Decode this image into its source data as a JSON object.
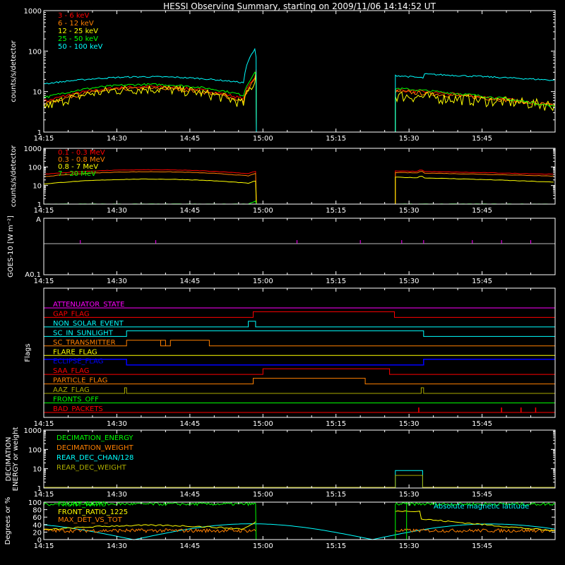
{
  "title": "HESSI Observing Summary, starting on 2009/11/06 14:14:52 UT",
  "x_tick_labels": [
    "14:15",
    "14:30",
    "14:45",
    "15:00",
    "15:15",
    "15:30",
    "15:45"
  ],
  "colors": {
    "background": "#000000",
    "axes": "#ffffff",
    "red": "#ff0000",
    "orange": "#ff8000",
    "yellow": "#ffff00",
    "green": "#00ff00",
    "cyan": "#00ffff",
    "magenta": "#ff00ff",
    "blue": "#0000ff",
    "olive": "#aaaa00"
  },
  "chart_data": [
    {
      "id": "xray",
      "type": "line",
      "ylabel": "counts/s/detector",
      "yscale": "log",
      "ylim": [
        1,
        1000
      ],
      "y_tick_labels": [
        "1",
        "10",
        "100",
        "1000"
      ],
      "series": [
        {
          "name": "3 - 6 keV",
          "color": "#ff0000"
        },
        {
          "name": "6 - 12 keV",
          "color": "#ff8000"
        },
        {
          "name": "12 - 25 keV",
          "color": "#ffff00"
        },
        {
          "name": "25 - 50 keV",
          "color": "#00ff00"
        },
        {
          "name": "50 - 100 keV",
          "color": "#00ffff"
        }
      ]
    },
    {
      "id": "gamma",
      "type": "line",
      "ylabel": "counts/s/detector",
      "yscale": "log",
      "ylim": [
        1,
        1000
      ],
      "y_tick_labels": [
        "1",
        "10",
        "100",
        "1000"
      ],
      "series": [
        {
          "name": "0.1 - 0.3 MeV",
          "color": "#ff0000"
        },
        {
          "name": "0.3 - 0.8 MeV",
          "color": "#ff8000"
        },
        {
          "name": "0.8 - 7 MeV",
          "color": "#ffff00"
        },
        {
          "name": "7 - 20 MeV",
          "color": "#00ff00"
        }
      ]
    },
    {
      "id": "goes",
      "type": "line",
      "ylabel": "GOES-10 [W m⁻²]",
      "y_tick_labels": [
        "A",
        "A0.1"
      ]
    },
    {
      "id": "flags",
      "type": "line",
      "ylabel": "Flags",
      "series": [
        {
          "name": "ATTENUATOR_STATE",
          "color": "#ff00ff"
        },
        {
          "name": "GAP_FLAG",
          "color": "#ff0000"
        },
        {
          "name": "NON_SOLAR_EVENT",
          "color": "#00ffff"
        },
        {
          "name": "SC_IN_SUNLIGHT",
          "color": "#00ffff"
        },
        {
          "name": "SC_TRANSMITTER",
          "color": "#ff8000"
        },
        {
          "name": "FLARE_FLAG",
          "color": "#ffff00"
        },
        {
          "name": "ECLIPSE_FLAG",
          "color": "#0000ff"
        },
        {
          "name": "SAA_FLAG",
          "color": "#ff0000"
        },
        {
          "name": "PARTICLE_FLAG",
          "color": "#ff8000"
        },
        {
          "name": "AAZ_FLAG",
          "color": "#aaaa00"
        },
        {
          "name": "FRONTS_OFF",
          "color": "#00ff00"
        },
        {
          "name": "BAD_PACKETS",
          "color": "#ff0000"
        }
      ]
    },
    {
      "id": "decimation",
      "type": "line",
      "ylabel": "DECIMATION ENERGY or weight",
      "yscale": "log",
      "ylim": [
        1,
        1000
      ],
      "y_tick_labels": [
        "1",
        "10",
        "100",
        "1000"
      ],
      "series": [
        {
          "name": "DECIMATION_ENERGY",
          "color": "#00ff00"
        },
        {
          "name": "DECIMATION_WEIGHT",
          "color": "#ff8000"
        },
        {
          "name": "REAR_DEC_CHAN/128",
          "color": "#00ffff"
        },
        {
          "name": "REAR_DEC_WEIGHT",
          "color": "#aaaa00"
        }
      ]
    },
    {
      "id": "ratios",
      "type": "line",
      "ylabel": "Degrees or %",
      "ylim": [
        0,
        100
      ],
      "y_tick_labels": [
        "0",
        "20",
        "40",
        "60",
        "80",
        "100"
      ],
      "series": [
        {
          "name": "FRONT_RATIO",
          "color": "#00ff00"
        },
        {
          "name": "FRONT_RATIO_1225",
          "color": "#ffff00"
        },
        {
          "name": "MAX_DET_VS_TOT",
          "color": "#ff8000"
        }
      ],
      "annotation": "Absolute magnetic latitude"
    }
  ]
}
